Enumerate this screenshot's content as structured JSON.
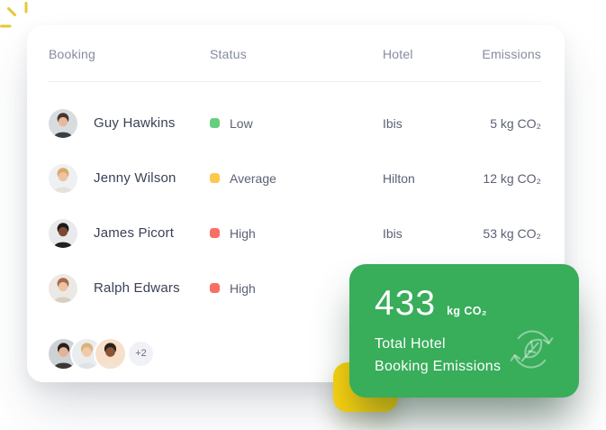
{
  "decor": {
    "sparkle_color": "#e9c636",
    "yellow_card_color": "#ffd60f"
  },
  "table": {
    "headers": {
      "booking": "Booking",
      "status": "Status",
      "hotel": "Hotel",
      "emissions": "Emissions"
    },
    "rows": [
      {
        "name": "Guy Hawkins",
        "status": {
          "label": "Low",
          "color": "#67ce7e"
        },
        "hotel": "Ibis",
        "emissions": "5 kg CO₂",
        "avatar": {
          "bg": "#d9dcdf",
          "hair": "#453730",
          "skin": "#e8b89a",
          "shirt": "#3a3f43"
        }
      },
      {
        "name": "Jenny Wilson",
        "status": {
          "label": "Average",
          "color": "#fcc84d"
        },
        "hotel": "Hilton",
        "emissions": "12 kg CO₂",
        "avatar": {
          "bg": "#eef0f2",
          "hair": "#d9a86c",
          "skin": "#f0c3a0",
          "shirt": "#e6e1da"
        }
      },
      {
        "name": "James Picort",
        "status": {
          "label": "High",
          "color": "#fa6f63"
        },
        "hotel": "Ibis",
        "emissions": "53 kg CO₂",
        "avatar": {
          "bg": "#e8eaec",
          "hair": "#1d1a18",
          "skin": "#7a4a32",
          "shirt": "#22211f"
        }
      },
      {
        "name": "Ralph Edwars",
        "status": {
          "label": "High",
          "color": "#fa6f63"
        },
        "hotel": "",
        "emissions": "",
        "avatar": {
          "bg": "#ece9e4",
          "hair": "#a86a4a",
          "skin": "#eec3a4",
          "shirt": "#d8cfc0"
        }
      }
    ],
    "avatar_group": {
      "overflow_label": "+2",
      "avatars": [
        {
          "bg": "#cfd2d5",
          "hair": "#26211e",
          "skin": "#e5b295",
          "shirt": "#3c3835"
        },
        {
          "bg": "#e9edf0",
          "hair": "#d9b379",
          "skin": "#f2c9a8",
          "shirt": "#dfe3e6"
        },
        {
          "bg": "#f7dfc9",
          "hair": "#2a211c",
          "skin": "#8a5437",
          "shirt": "#f3e3d2"
        }
      ]
    }
  },
  "summary_card": {
    "value": "433",
    "unit": "kg CO₂",
    "label_line1": "Total Hotel",
    "label_line2": "Booking Emissions",
    "background": "#38ad5a",
    "icon": "leaf-recycle-icon"
  }
}
